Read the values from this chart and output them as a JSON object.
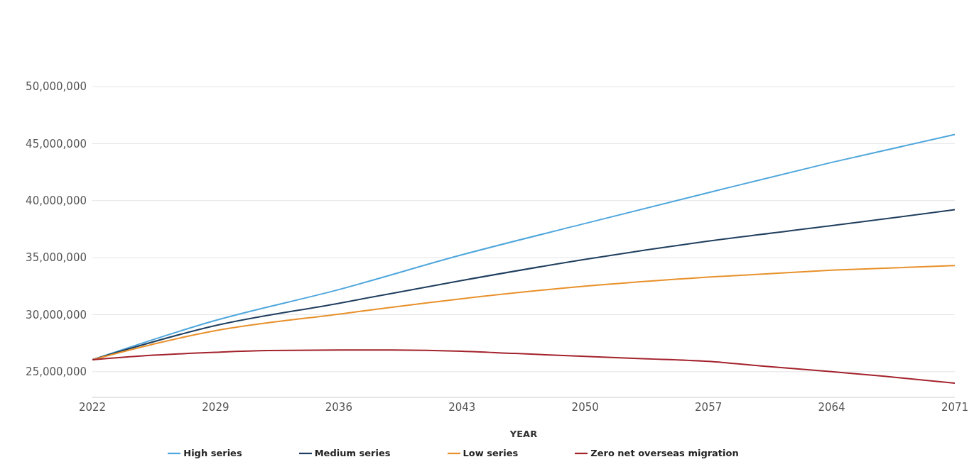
{
  "chart_data": {
    "type": "line",
    "xlabel": "YEAR",
    "xlim": [
      2022,
      2071
    ],
    "xticks": [
      2022,
      2029,
      2036,
      2043,
      2050,
      2057,
      2064,
      2071
    ],
    "ylim": [
      22750000,
      50000000
    ],
    "yticks": [
      {
        "value": 25000000,
        "label": "25,000,000"
      },
      {
        "value": 30000000,
        "label": "30,000,000"
      },
      {
        "value": 35000000,
        "label": "35,000,000"
      },
      {
        "value": 40000000,
        "label": "40,000,000"
      },
      {
        "value": 45000000,
        "label": "45,000,000"
      },
      {
        "value": 50000000,
        "label": "50,000,000"
      }
    ],
    "grid": "y",
    "legend": "bottom",
    "marker": "none",
    "line_style": "solid",
    "series": [
      {
        "name": "High series",
        "color": "#4ea6dc",
        "x": [
          2022,
          2029,
          2036,
          2043,
          2050,
          2057,
          2064,
          2071
        ],
        "values": [
          26050000,
          29500000,
          32200000,
          35250000,
          38000000,
          40700000,
          43350000,
          45800000
        ]
      },
      {
        "name": "Medium series",
        "color": "#1f3e5e",
        "x": [
          2022,
          2029,
          2036,
          2043,
          2050,
          2057,
          2064,
          2071
        ],
        "values": [
          26050000,
          29050000,
          31000000,
          33000000,
          34850000,
          36450000,
          37800000,
          39200000
        ]
      },
      {
        "name": "Low series",
        "color": "#e8902a",
        "x": [
          2022,
          2029,
          2036,
          2043,
          2050,
          2057,
          2064,
          2071
        ],
        "values": [
          26050000,
          28600000,
          30050000,
          31400000,
          32500000,
          33300000,
          33900000,
          34300000
        ]
      },
      {
        "name": "Zero net overseas migration",
        "color": "#a3222c",
        "x": [
          2022,
          2025,
          2029,
          2032,
          2036,
          2039,
          2043,
          2046,
          2050,
          2053,
          2057,
          2060,
          2064,
          2067,
          2071
        ],
        "values": [
          26050000,
          26400000,
          26700000,
          26850000,
          26900000,
          26900000,
          26800000,
          26600000,
          26350000,
          26150000,
          25900000,
          25500000,
          25000000,
          24600000,
          24000000
        ]
      }
    ]
  }
}
